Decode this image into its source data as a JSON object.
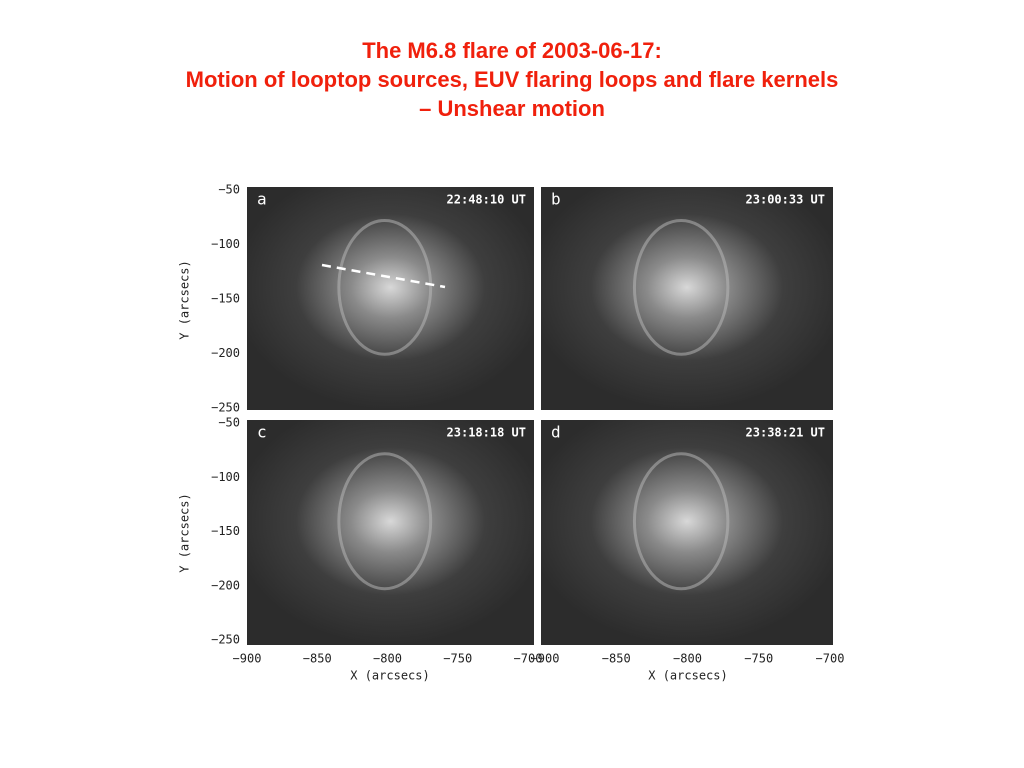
{
  "title": {
    "lines": [
      "The M6.8 flare of 2003-06-17:",
      "Motion of looptop sources, EUV flaring loops and flare kernels",
      "– Unshear motion"
    ]
  },
  "figure": {
    "panels": [
      {
        "letter": "a",
        "time": "22:48:10 UT"
      },
      {
        "letter": "b",
        "time": "23:00:33 UT"
      },
      {
        "letter": "c",
        "time": "23:18:18 UT"
      },
      {
        "letter": "d",
        "time": "23:38:21 UT"
      }
    ],
    "y_axis_label": "Y (arcsecs)",
    "x_axis_label": "X (arcsecs)",
    "y_tick_labels": [
      "−50",
      "−100",
      "−150",
      "−200",
      "−250"
    ],
    "x_tick_labels": [
      "−900",
      "−850",
      "−800",
      "−750",
      "−700"
    ]
  }
}
